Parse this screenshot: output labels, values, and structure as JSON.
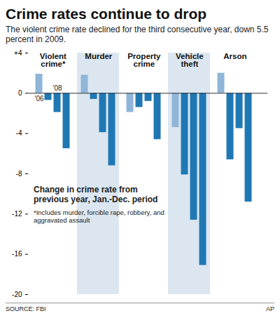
{
  "chart_data": {
    "type": "bar",
    "title": "Crime rates continue to drop",
    "subtitle": "The violent crime rate declined for the third consecutive year, down 5.5 percent in 2009.",
    "categories": [
      "Violent crime*",
      "Murder",
      "Property crime",
      "Vehicle theft",
      "Arson"
    ],
    "series": [
      {
        "name": "'06",
        "color": "#8fb6d8",
        "values": [
          1.9,
          1.8,
          -1.9,
          -3.4,
          2.0
        ]
      },
      {
        "name": null,
        "color": "#1f78b4",
        "values": [
          -0.7,
          -0.6,
          -1.4,
          -8.1,
          -6.6
        ]
      },
      {
        "name": "'08",
        "color": "#1f78b4",
        "values": [
          -1.9,
          -3.9,
          -0.8,
          -12.6,
          -3.5
        ]
      },
      {
        "name": null,
        "color": "#1f78b4",
        "values": [
          -5.5,
          -7.2,
          -4.6,
          -17.1,
          -10.8
        ]
      }
    ],
    "ylim": [
      -20,
      4
    ],
    "yticks": [
      {
        "value": 4,
        "label": "+4"
      },
      0,
      -4,
      -8,
      -12,
      -16,
      -20
    ],
    "grid": false,
    "annotations": [
      "Change in crime rate from previous year, Jan.-Dec. period",
      "*Includes murder, forcible rape, robbery, and aggravated assault"
    ],
    "source": "SOURCE: FBI",
    "credit": "AP"
  }
}
